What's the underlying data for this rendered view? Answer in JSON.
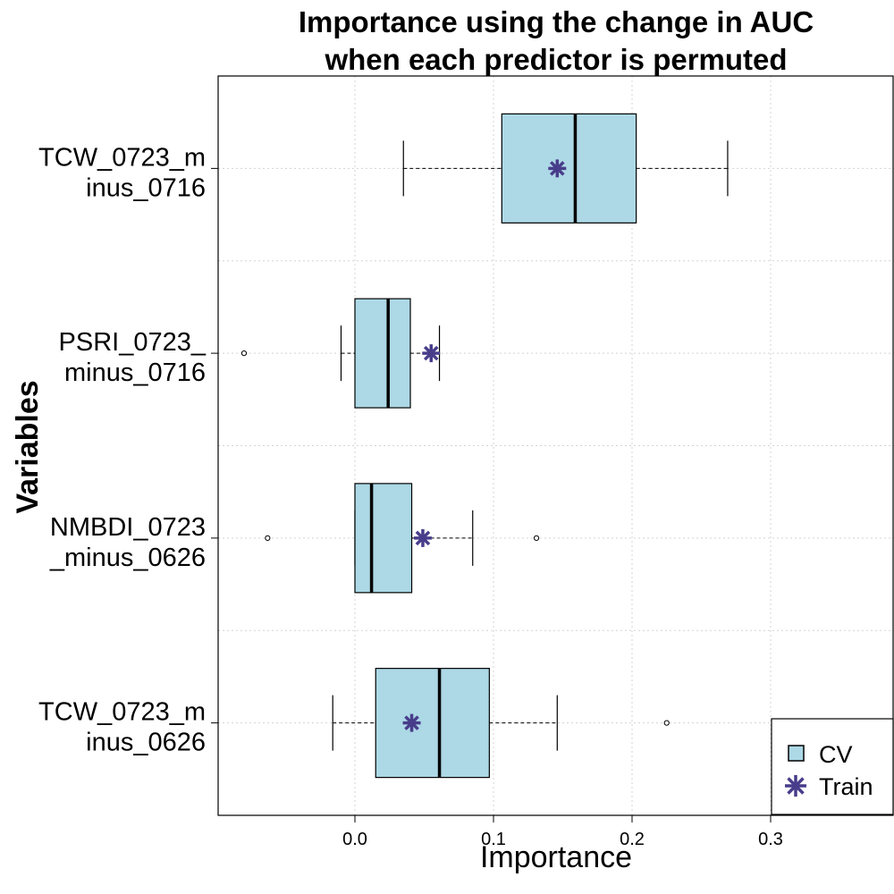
{
  "chart_data": {
    "type": "boxplot",
    "title": [
      "Importance using the change in AUC",
      "when each predictor is permuted"
    ],
    "xlabel": "Importance",
    "ylabel": "Variables",
    "xlim": [
      -0.1,
      0.385
    ],
    "xticks": [
      0.0,
      0.1,
      0.2,
      0.3
    ],
    "xtick_labels": [
      "0.0",
      "0.1",
      "0.2",
      "0.3"
    ],
    "grid": true,
    "legend_position": "bottom-right",
    "colors": {
      "box_fill": "#add8e6",
      "train_marker": "#483d8b",
      "grid": "#d3d3d3"
    },
    "legend": [
      {
        "label": "CV",
        "symbol": "square"
      },
      {
        "label": "Train",
        "symbol": "asterisk"
      }
    ],
    "categories": [
      {
        "label": [
          "TCW_0723_m",
          "inus_0716"
        ],
        "whisker_low": 0.035,
        "q1": 0.106,
        "median": 0.159,
        "q3": 0.203,
        "whisker_high": 0.269,
        "outliers": [],
        "train": 0.146
      },
      {
        "label": [
          "PSRI_0723_",
          "minus_0716"
        ],
        "whisker_low": -0.01,
        "q1": 0.0,
        "median": 0.024,
        "q3": 0.04,
        "whisker_high": 0.061,
        "outliers": [
          -0.08
        ],
        "train": 0.055
      },
      {
        "label": [
          "NMBDI_0723",
          "_minus_0626"
        ],
        "whisker_low": 0.0,
        "q1": 0.0,
        "median": 0.012,
        "q3": 0.041,
        "whisker_high": 0.085,
        "outliers": [
          -0.063,
          0.131
        ],
        "train": 0.049
      },
      {
        "label": [
          "TCW_0723_m",
          "inus_0626"
        ],
        "whisker_low": -0.016,
        "q1": 0.015,
        "median": 0.061,
        "q3": 0.097,
        "whisker_high": 0.146,
        "outliers": [
          0.225
        ],
        "train": 0.041
      }
    ]
  }
}
